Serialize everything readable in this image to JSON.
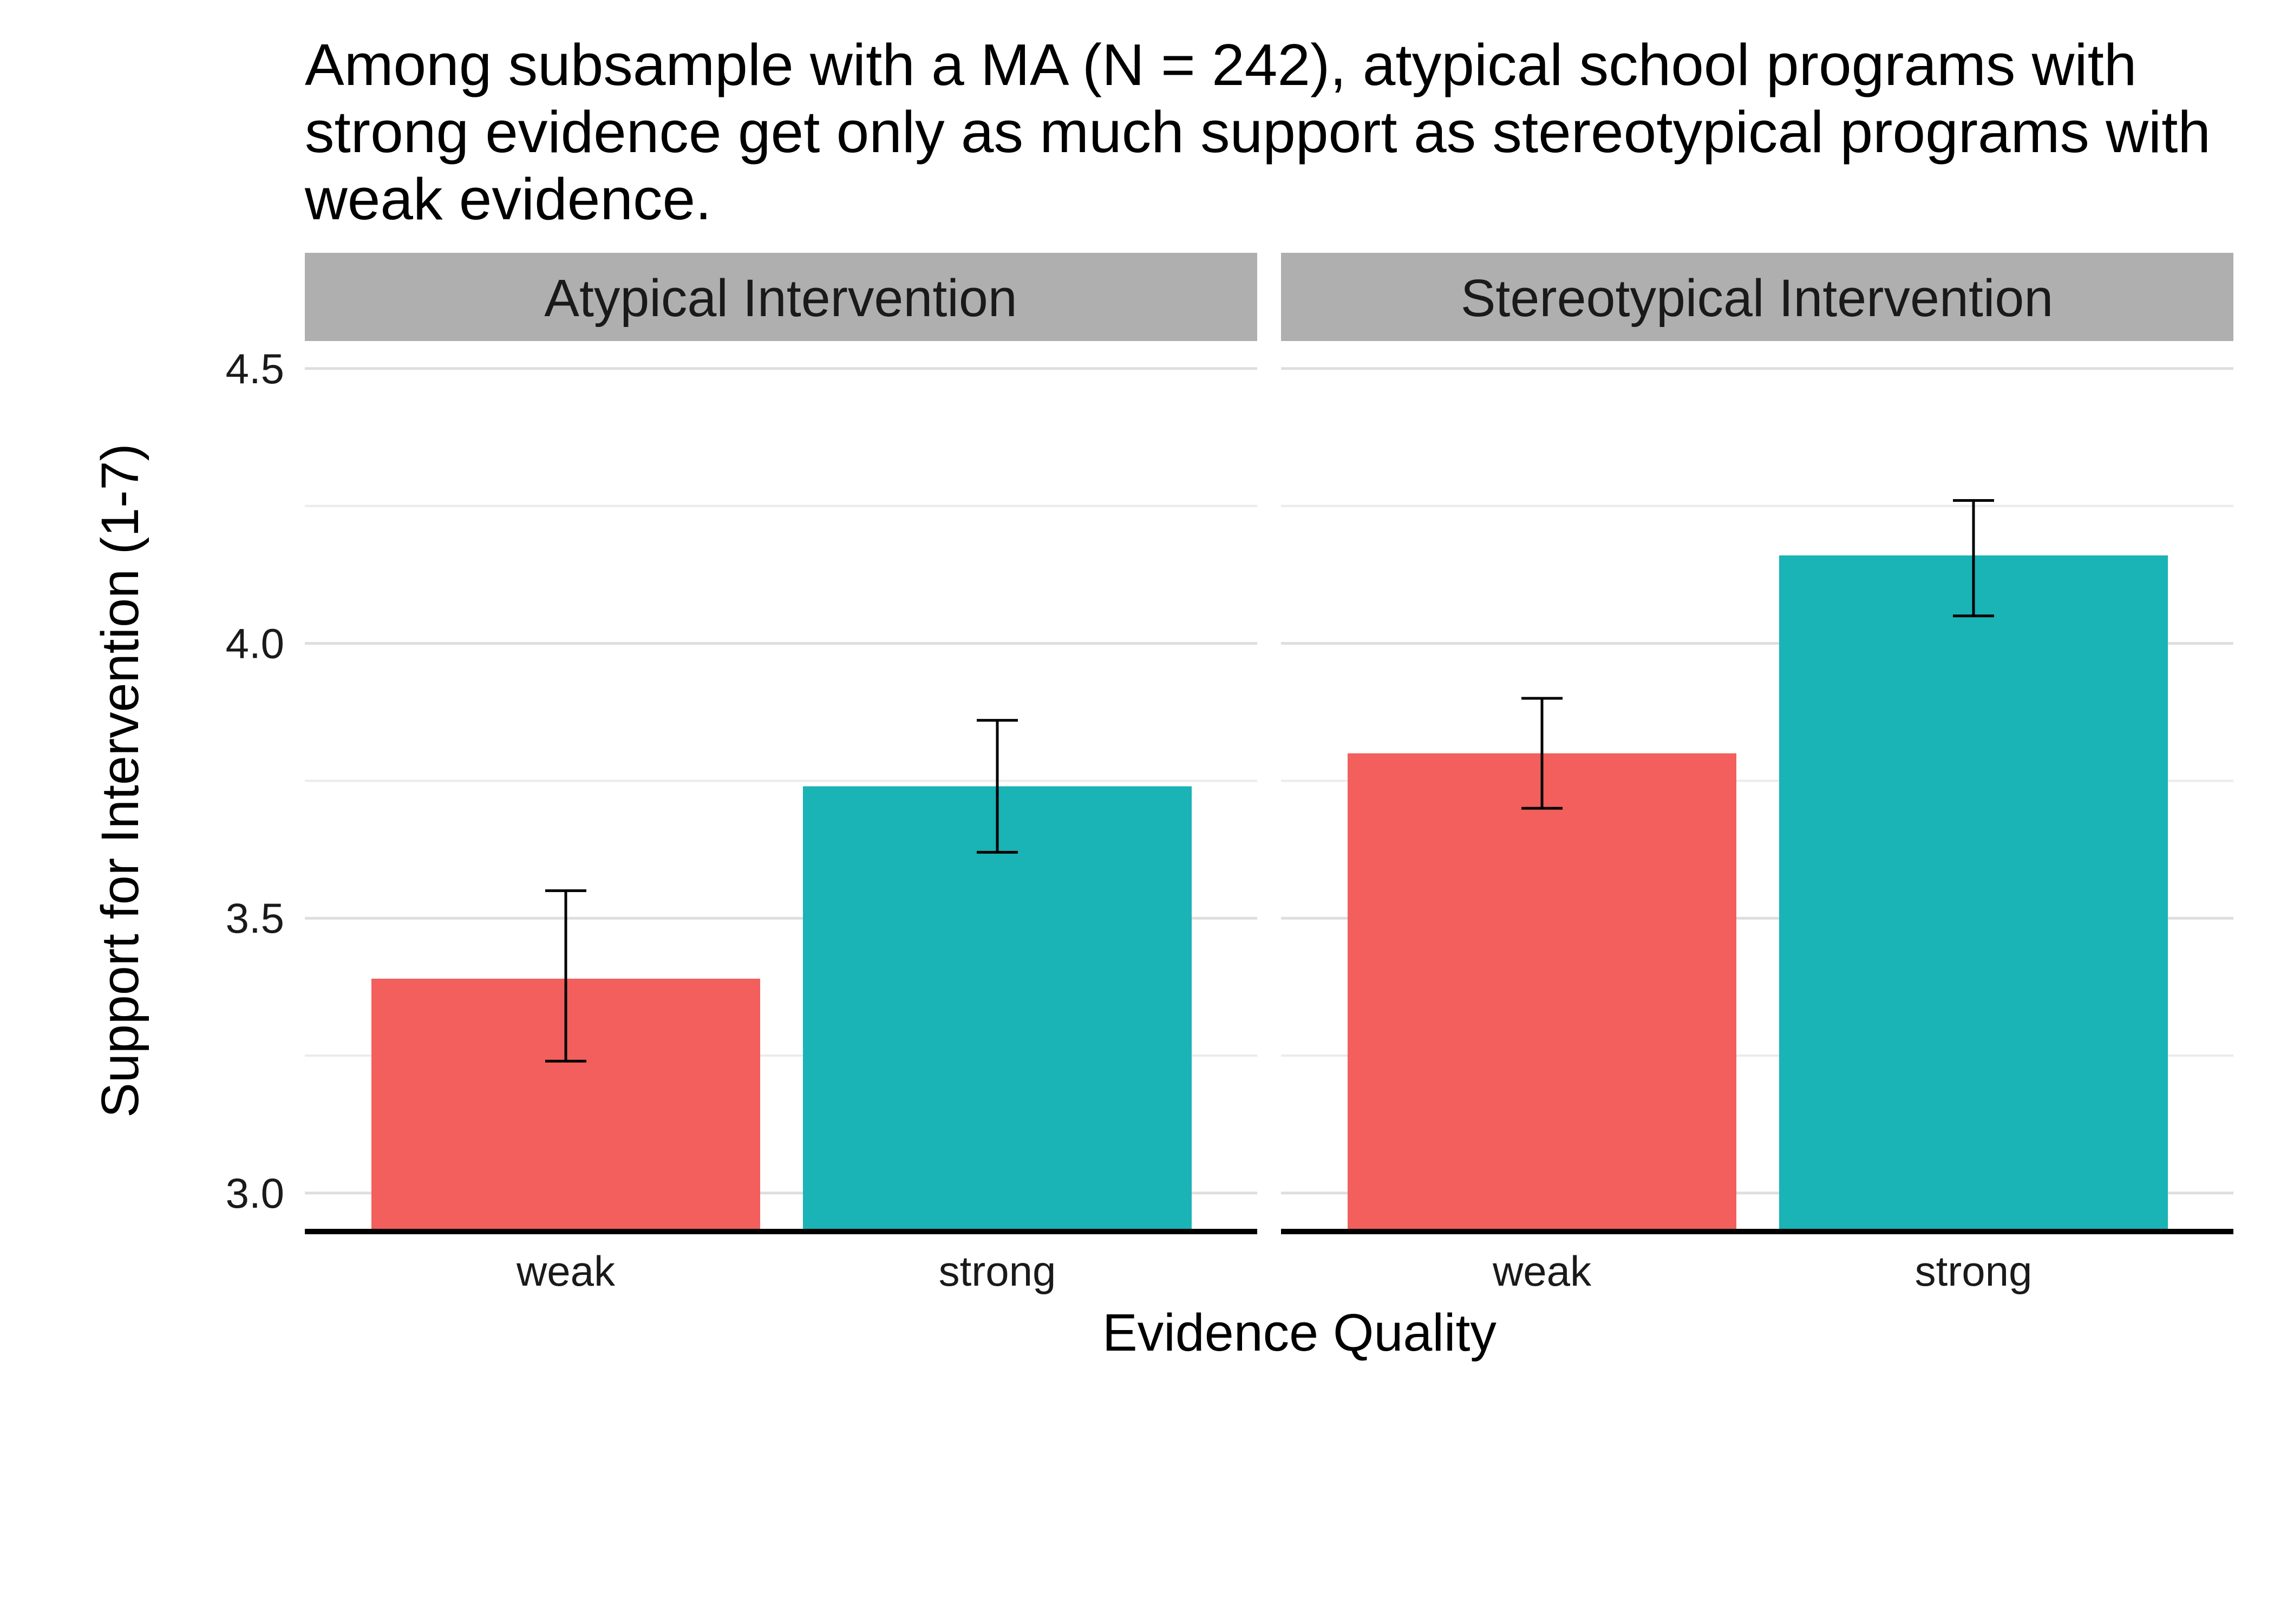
{
  "chart_data": {
    "type": "bar",
    "title_lines": [
      "Among subsample with a MA (N = 242), atypical school programs with",
      "strong evidence get only as much support as stereotypical programs with",
      "weak evidence."
    ],
    "xlabel": "Evidence Quality",
    "ylabel": "Support for Intervention (1-7)",
    "ylim": [
      2.93,
      4.55
    ],
    "yticks": [
      3.0,
      3.5,
      4.0,
      4.5
    ],
    "ytick_labels": [
      "3.0",
      "3.5",
      "4.0",
      "4.5"
    ],
    "minor_gridlines": [
      3.25,
      3.75,
      4.25
    ],
    "categories": [
      "weak",
      "strong"
    ],
    "fill_colors": {
      "weak": "#F25F5C",
      "strong": "#1AB3B6"
    },
    "panels": [
      {
        "label": "Atypical Intervention",
        "bars": [
          {
            "category": "weak",
            "value": 3.39,
            "error_low": 3.24,
            "error_high": 3.55
          },
          {
            "category": "strong",
            "value": 3.74,
            "error_low": 3.62,
            "error_high": 3.86
          }
        ]
      },
      {
        "label": "Stereotypical Intervention",
        "bars": [
          {
            "category": "weak",
            "value": 3.8,
            "error_low": 3.7,
            "error_high": 3.9
          },
          {
            "category": "strong",
            "value": 4.16,
            "error_low": 4.05,
            "error_high": 4.26
          }
        ]
      }
    ],
    "legend": "none",
    "grid": true
  }
}
